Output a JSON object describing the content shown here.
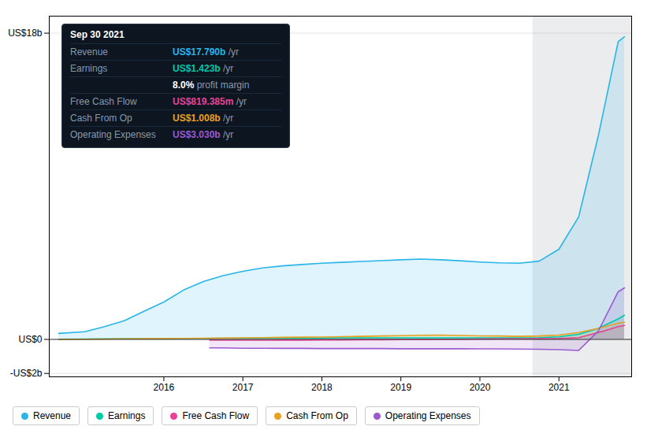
{
  "chart_data": {
    "type": "area",
    "xlim": [
      2014.55,
      2021.92
    ],
    "xticks": [
      2016,
      2017,
      2018,
      2019,
      2020,
      2021
    ],
    "ylim": [
      -2.2,
      19.0
    ],
    "yticks": [
      {
        "value": -2,
        "label": "-US$2b"
      },
      {
        "value": 0,
        "label": "US$0"
      },
      {
        "value": 18,
        "label": "US$18b"
      }
    ],
    "grid": true,
    "legend": "bottom",
    "highlight_x": 2020.67,
    "series": [
      {
        "name": "Revenue",
        "color": "#29b5e8",
        "x": [
          2014.67,
          2015.0,
          2015.25,
          2015.5,
          2015.75,
          2016.0,
          2016.25,
          2016.5,
          2016.75,
          2017.0,
          2017.25,
          2017.5,
          2017.75,
          2018.0,
          2018.25,
          2018.5,
          2018.75,
          2019.0,
          2019.25,
          2019.5,
          2019.75,
          2020.0,
          2020.25,
          2020.5,
          2020.75,
          2021.0,
          2021.25,
          2021.5,
          2021.75,
          2021.83
        ],
        "values": [
          0.35,
          0.45,
          0.75,
          1.1,
          1.65,
          2.2,
          2.9,
          3.4,
          3.75,
          4.0,
          4.2,
          4.32,
          4.4,
          4.48,
          4.53,
          4.58,
          4.63,
          4.68,
          4.72,
          4.68,
          4.62,
          4.55,
          4.5,
          4.48,
          4.6,
          5.3,
          7.2,
          12.0,
          17.5,
          17.79
        ]
      },
      {
        "name": "Earnings",
        "color": "#00c9a7",
        "x": [
          2014.67,
          2015.0,
          2015.25,
          2015.5,
          2015.75,
          2016.0,
          2016.25,
          2016.5,
          2016.75,
          2017.0,
          2017.25,
          2017.5,
          2017.75,
          2018.0,
          2018.25,
          2018.5,
          2018.75,
          2019.0,
          2019.25,
          2019.5,
          2019.75,
          2020.0,
          2020.25,
          2020.5,
          2020.75,
          2021.0,
          2021.25,
          2021.5,
          2021.75,
          2021.83
        ],
        "values": [
          0.01,
          0.02,
          0.03,
          0.04,
          0.04,
          0.05,
          0.06,
          0.06,
          0.07,
          0.07,
          0.07,
          0.08,
          0.08,
          0.08,
          0.09,
          0.09,
          0.09,
          0.09,
          0.09,
          0.09,
          0.09,
          0.09,
          0.09,
          0.09,
          0.1,
          0.15,
          0.3,
          0.65,
          1.2,
          1.423
        ]
      },
      {
        "name": "Free Cash Flow",
        "color": "#e84393",
        "x": [
          2016.58,
          2016.75,
          2017.0,
          2017.25,
          2017.5,
          2017.75,
          2018.0,
          2018.25,
          2018.5,
          2018.75,
          2019.0,
          2019.25,
          2019.5,
          2019.75,
          2020.0,
          2020.25,
          2020.5,
          2020.75,
          2021.0,
          2021.25,
          2021.5,
          2021.75,
          2021.83
        ],
        "values": [
          -0.05,
          -0.05,
          -0.05,
          -0.05,
          -0.04,
          -0.04,
          -0.03,
          -0.03,
          -0.02,
          -0.02,
          -0.01,
          -0.01,
          0.0,
          0.01,
          0.02,
          0.03,
          0.03,
          0.04,
          0.05,
          0.1,
          0.4,
          0.75,
          0.819
        ]
      },
      {
        "name": "Cash From Op",
        "color": "#e8a020",
        "x": [
          2014.67,
          2015.0,
          2015.25,
          2015.5,
          2015.75,
          2016.0,
          2016.25,
          2016.5,
          2016.75,
          2017.0,
          2017.25,
          2017.5,
          2017.75,
          2018.0,
          2018.25,
          2018.5,
          2018.75,
          2019.0,
          2019.25,
          2019.5,
          2019.75,
          2020.0,
          2020.25,
          2020.5,
          2020.75,
          2021.0,
          2021.25,
          2021.5,
          2021.75,
          2021.83
        ],
        "values": [
          0.0,
          0.01,
          0.02,
          0.03,
          0.04,
          0.05,
          0.06,
          0.07,
          0.08,
          0.09,
          0.1,
          0.12,
          0.13,
          0.14,
          0.16,
          0.18,
          0.2,
          0.22,
          0.24,
          0.25,
          0.23,
          0.21,
          0.2,
          0.18,
          0.2,
          0.25,
          0.4,
          0.65,
          0.95,
          1.008
        ]
      },
      {
        "name": "Operating Expenses",
        "color": "#9b59d0",
        "x": [
          2016.58,
          2016.75,
          2017.0,
          2017.25,
          2017.5,
          2017.75,
          2018.0,
          2018.25,
          2018.5,
          2018.75,
          2019.0,
          2019.25,
          2019.5,
          2019.75,
          2020.0,
          2020.25,
          2020.5,
          2020.75,
          2021.0,
          2021.25,
          2021.5,
          2021.75,
          2021.83
        ],
        "values": [
          -0.5,
          -0.5,
          -0.52,
          -0.52,
          -0.53,
          -0.53,
          -0.54,
          -0.54,
          -0.54,
          -0.54,
          -0.55,
          -0.55,
          -0.55,
          -0.55,
          -0.56,
          -0.56,
          -0.57,
          -0.58,
          -0.6,
          -0.65,
          0.5,
          2.8,
          3.03
        ]
      }
    ],
    "tooltip": {
      "title": "Sep 30 2021",
      "label_color": "#8899aa",
      "rows": [
        {
          "label": "Revenue",
          "value": "US$17.790b",
          "color": "#29b5e8",
          "suffix": " /yr"
        },
        {
          "label": "Earnings",
          "value": "US$1.423b",
          "color": "#00c9a7",
          "suffix": " /yr"
        },
        {
          "value": "8.0%",
          "color": "#ffffff",
          "suffix": " profit margin"
        },
        {
          "label": "Free Cash Flow",
          "value": "US$819.385m",
          "color": "#e84393",
          "suffix": " /yr"
        },
        {
          "label": "Cash From Op",
          "value": "US$1.008b",
          "color": "#e8a020",
          "suffix": " /yr"
        },
        {
          "label": "Operating Expenses",
          "value": "US$3.030b",
          "color": "#9b59d0",
          "suffix": " /yr"
        }
      ]
    }
  }
}
